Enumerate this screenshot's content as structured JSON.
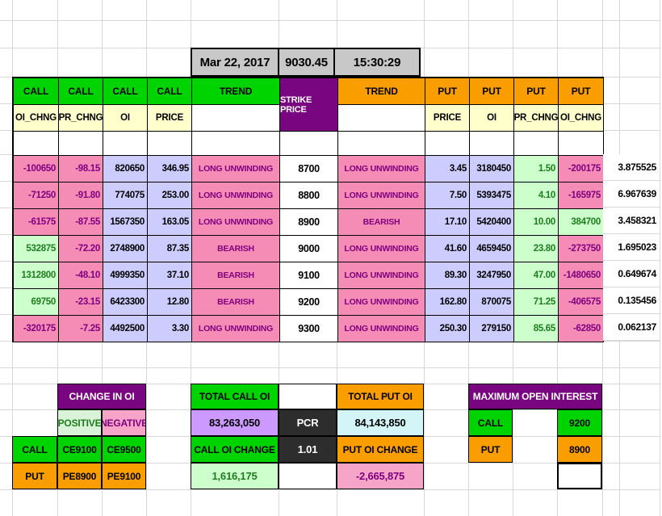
{
  "titlebar": {
    "date": "Mar 22, 2017",
    "spot": "9030.45",
    "time": "15:30:29"
  },
  "option_chain": {
    "call_headers": [
      "CALL",
      "CALL",
      "CALL",
      "CALL"
    ],
    "call_subheaders": [
      "OI_CHNG",
      "PR_CHNG",
      "OI",
      "PRICE"
    ],
    "trend_call_label": "TREND",
    "strike_price_label": "STRIKE PRICE",
    "trend_put_label": "TREND",
    "put_headers": [
      "PUT",
      "PUT",
      "PUT",
      "PUT"
    ],
    "put_subheaders": [
      "PRICE",
      "OI",
      "PR_CHNG",
      "OI_CHNG"
    ],
    "rows": [
      {
        "call_oi_chng": "-100650",
        "call_pr_chng": "-98.15",
        "call_oi": "820650",
        "call_price": "346.95",
        "call_trend": "LONG UNWINDING",
        "strike": "8700",
        "put_trend": "LONG UNWINDING",
        "put_price": "3.45",
        "put_oi": "3180450",
        "put_pr_chng": "1.50",
        "put_oi_chng": "-200175",
        "pcr_ratio": "3.875525"
      },
      {
        "call_oi_chng": "-71250",
        "call_pr_chng": "-91.80",
        "call_oi": "774075",
        "call_price": "253.00",
        "call_trend": "LONG UNWINDING",
        "strike": "8800",
        "put_trend": "LONG UNWINDING",
        "put_price": "7.50",
        "put_oi": "5393475",
        "put_pr_chng": "4.10",
        "put_oi_chng": "-165975",
        "pcr_ratio": "6.967639"
      },
      {
        "call_oi_chng": "-61575",
        "call_pr_chng": "-87.55",
        "call_oi": "1567350",
        "call_price": "163.05",
        "call_trend": "LONG UNWINDING",
        "strike": "8900",
        "put_trend": "BEARISH",
        "put_price": "17.10",
        "put_oi": "5420400",
        "put_pr_chng": "10.00",
        "put_oi_chng": "384700",
        "pcr_ratio": "3.458321"
      },
      {
        "call_oi_chng": "532875",
        "call_pr_chng": "-72.20",
        "call_oi": "2748900",
        "call_price": "87.35",
        "call_trend": "BEARISH",
        "strike": "9000",
        "put_trend": "LONG UNWINDING",
        "put_price": "41.60",
        "put_oi": "4659450",
        "put_pr_chng": "23.80",
        "put_oi_chng": "-273750",
        "pcr_ratio": "1.695023"
      },
      {
        "call_oi_chng": "1312800",
        "call_pr_chng": "-48.10",
        "call_oi": "4999350",
        "call_price": "37.10",
        "call_trend": "BEARISH",
        "strike": "9100",
        "put_trend": "LONG UNWINDING",
        "put_price": "89.30",
        "put_oi": "3247950",
        "put_pr_chng": "47.00",
        "put_oi_chng": "-1480650",
        "pcr_ratio": "0.649674"
      },
      {
        "call_oi_chng": "69750",
        "call_pr_chng": "-23.15",
        "call_oi": "6423300",
        "call_price": "12.80",
        "call_trend": "BEARISH",
        "strike": "9200",
        "put_trend": "LONG UNWINDING",
        "put_price": "162.80",
        "put_oi": "870075",
        "put_pr_chng": "71.25",
        "put_oi_chng": "-406575",
        "pcr_ratio": "0.135456"
      },
      {
        "call_oi_chng": "-320175",
        "call_pr_chng": "-7.25",
        "call_oi": "4492500",
        "call_price": "3.30",
        "call_trend": "LONG UNWINDING",
        "strike": "9300",
        "put_trend": "LONG UNWINDING",
        "put_price": "250.30",
        "put_oi": "279150",
        "put_pr_chng": "85.65",
        "put_oi_chng": "-62850",
        "pcr_ratio": "0.062137"
      }
    ]
  },
  "change_in_oi": {
    "title": "CHANGE IN OI",
    "positive_label": "POSITIVE",
    "negative_label": "NEGATIVE",
    "rows": [
      {
        "label": "CALL",
        "positive": "CE9100",
        "negative": "CE9500"
      },
      {
        "label": "PUT",
        "positive": "PE8900",
        "negative": "PE9100"
      }
    ]
  },
  "oi_summary": {
    "total_call_label": "TOTAL CALL OI",
    "total_call_value": "83,263,050",
    "call_change_label": "CALL OI CHANGE",
    "call_change_value": "1,616,175",
    "pcr_label": "PCR",
    "pcr_value": "1.01",
    "total_put_label": "TOTAL PUT OI",
    "total_put_value": "84,143,850",
    "put_change_label": "PUT OI CHANGE",
    "put_change_value": "-2,665,875"
  },
  "max_open_interest": {
    "title": "MAXIMUM OPEN INTEREST",
    "call_label": "CALL",
    "call_strike": "9200",
    "put_label": "PUT",
    "put_strike": "8900"
  },
  "colors": {
    "green": "#00d400",
    "orange": "#fa9e00",
    "purple": "#7a0580",
    "yellow": "#ffffcc",
    "lavender": "#ccccff",
    "pink": "#f48cb5",
    "pink_light": "#f6a4c8",
    "light_green": "#ccffcc",
    "pos_label_bg": "#d9f3d9",
    "violet": "#cc99ff",
    "cyan": "#d4f5f7",
    "dark": "#2d2d2d",
    "gray_title": "#c8c8c8",
    "grid": "#d8d8d8",
    "neg_text": "#800080",
    "pos_text": "#1e7d1e"
  }
}
